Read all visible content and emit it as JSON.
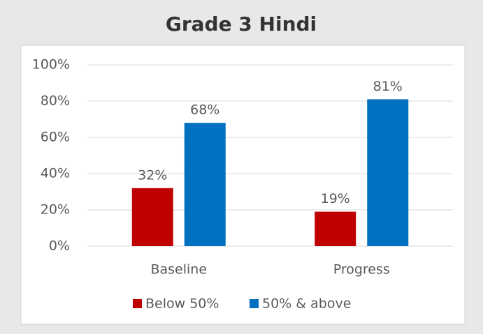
{
  "chart_data": {
    "type": "bar",
    "title": "Grade 3 Hindi",
    "categories": [
      "Baseline",
      "Progress"
    ],
    "series": [
      {
        "name": "Below 50%",
        "color": "#c00000",
        "values": [
          32,
          19
        ],
        "value_labels": [
          "32%",
          "19%"
        ]
      },
      {
        "name": "50% & above",
        "color": "#0070c0",
        "values": [
          68,
          81
        ],
        "value_labels": [
          "68%",
          "81%"
        ]
      }
    ],
    "ylim": [
      0,
      100
    ],
    "yticks": [
      {
        "value": 0,
        "label": "0%"
      },
      {
        "value": 20,
        "label": "20%"
      },
      {
        "value": 40,
        "label": "40%"
      },
      {
        "value": 60,
        "label": "60%"
      },
      {
        "value": 80,
        "label": "80%"
      },
      {
        "value": 100,
        "label": "100%"
      }
    ],
    "grid": true,
    "legend": "bottom"
  }
}
